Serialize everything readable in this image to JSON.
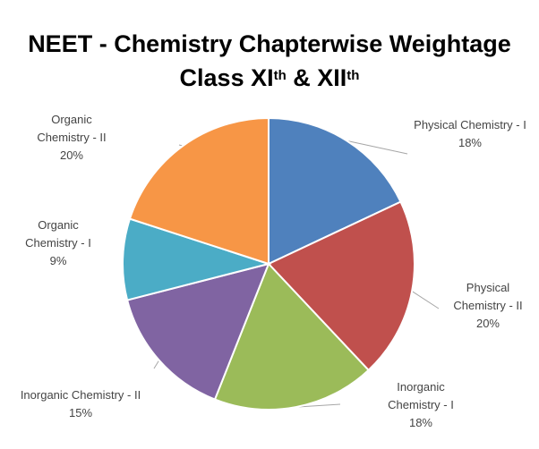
{
  "chart_data": {
    "type": "pie",
    "title": "NEET - Chemistry Chapterwise Weightage",
    "subtitle": {
      "class_text": "Class XI",
      "class_sup": "th",
      "and_text": " & XII",
      "and_sup": "th"
    },
    "start_angle_deg": 0,
    "direction": "clockwise",
    "slices": [
      {
        "label_lines": [
          "Physical Chemistry - I"
        ],
        "value": 18,
        "value_label": "18%",
        "color": "#4F81BD"
      },
      {
        "label_lines": [
          "Physical",
          "Chemistry - II"
        ],
        "value": 20,
        "value_label": "20%",
        "color": "#C0504D"
      },
      {
        "label_lines": [
          "Inorganic",
          "Chemistry - I"
        ],
        "value": 18,
        "value_label": "18%",
        "color": "#9BBB59"
      },
      {
        "label_lines": [
          "Inorganic Chemistry - II"
        ],
        "value": 15,
        "value_label": "15%",
        "color": "#8064A2"
      },
      {
        "label_lines": [
          "Organic",
          "Chemistry - I"
        ],
        "value": 9,
        "value_label": "9%",
        "color": "#4BACC6"
      },
      {
        "label_lines": [
          "Organic",
          "Chemistry - II"
        ],
        "value": 20,
        "value_label": "20%",
        "color": "#F79646"
      }
    ]
  }
}
